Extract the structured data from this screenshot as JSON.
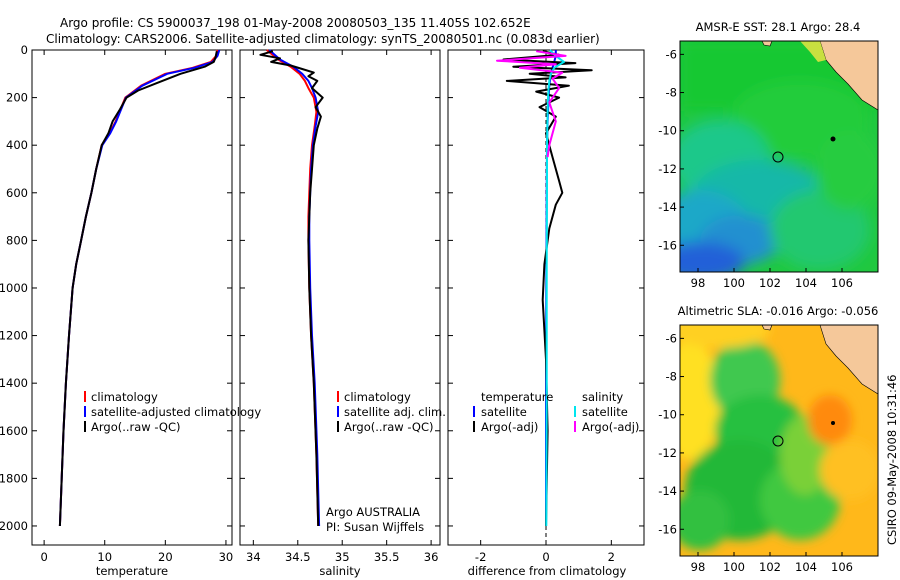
{
  "title": {
    "line1": "Argo profile: CS 5900037_198 01-May-2008 20080503_135 11.405S 102.652E",
    "line2": "Climatology: CARS2006. Satellite-adjusted climatology: synTS_20080501.nc (0.083d earlier)"
  },
  "credit": "CSIRO 09-May-2008 10:31:46",
  "colors": {
    "climatology": "#ff0000",
    "satellite": "#0000ff",
    "argo": "#000000",
    "sat_salinity": "#00e5ee",
    "argo_salinity": "#ff00ff"
  },
  "chart_data": [
    {
      "type": "line",
      "name": "temperature-profile",
      "xlabel": "temperature",
      "ylabel": "",
      "xlim": [
        -2,
        31
      ],
      "ylim": [
        2080,
        0
      ],
      "xticks": [
        0,
        10,
        20,
        30
      ],
      "yticks": [
        0,
        200,
        400,
        600,
        800,
        1000,
        1200,
        1400,
        1600,
        1800,
        2000
      ],
      "legend": [
        "climatology",
        "satellite-adjusted climatology",
        "Argo(..raw -QC)"
      ],
      "series": [
        {
          "name": "climatology",
          "color": "#ff0000",
          "x": [
            28.6,
            28.4,
            27.5,
            24.5,
            20,
            16,
            13.4,
            11.8,
            10.8,
            9.5,
            8.6,
            7.8,
            6.9,
            6.1,
            5.3,
            4.7,
            4.1,
            3.6,
            3.2,
            2.9,
            2.6
          ],
          "y": [
            0,
            25,
            50,
            75,
            100,
            150,
            200,
            300,
            350,
            400,
            500,
            600,
            700,
            800,
            900,
            1000,
            1200,
            1400,
            1600,
            1800,
            2000
          ]
        },
        {
          "name": "satellite-adjusted climatology",
          "color": "#0000ff",
          "x": [
            28.9,
            28.6,
            27.8,
            24.8,
            20.3,
            16.2,
            13.5,
            11.9,
            10.9,
            9.6,
            8.6,
            7.8,
            6.9,
            6.1,
            5.3,
            4.7,
            4.1,
            3.6,
            3.2,
            2.9,
            2.6
          ],
          "y": [
            0,
            25,
            50,
            75,
            100,
            150,
            200,
            300,
            350,
            400,
            500,
            600,
            700,
            800,
            900,
            1000,
            1200,
            1400,
            1600,
            1800,
            2000
          ]
        },
        {
          "name": "Argo(..raw -QC)",
          "color": "#000000",
          "x": [
            28.5,
            28.3,
            28.0,
            26.5,
            22.5,
            18.5,
            15.5,
            13.6,
            12.5,
            11.3,
            10.6,
            9.5,
            8.6,
            7.8,
            6.9,
            6.1,
            5.3,
            4.7,
            4.1,
            3.6,
            3.2,
            2.9,
            2.6
          ],
          "y": [
            5,
            30,
            50,
            70,
            100,
            140,
            170,
            200,
            250,
            300,
            350,
            400,
            500,
            600,
            700,
            800,
            900,
            1000,
            1200,
            1400,
            1600,
            1800,
            2000
          ]
        }
      ]
    },
    {
      "type": "line",
      "name": "salinity-profile",
      "xlabel": "salinity",
      "ylabel": "",
      "xlim": [
        33.85,
        36.1
      ],
      "ylim": [
        2080,
        0
      ],
      "xticks": [
        34,
        34.5,
        35,
        35.5,
        36
      ],
      "yticks": [
        0,
        200,
        400,
        600,
        800,
        1000,
        1200,
        1400,
        1600,
        1800,
        2000
      ],
      "legend": [
        "climatology",
        "satellite adj. clim.",
        "Argo(..raw -QC)"
      ],
      "annotation": [
        "Argo AUSTRALIA",
        "PI: Susan Wijffels"
      ],
      "series": [
        {
          "name": "climatology",
          "color": "#ff0000",
          "x": [
            34.15,
            34.28,
            34.42,
            34.52,
            34.58,
            34.62,
            34.68,
            34.71,
            34.69,
            34.66,
            34.64,
            34.63,
            34.62,
            34.62,
            34.63,
            34.65,
            34.68,
            34.71,
            34.73
          ],
          "y": [
            0,
            40,
            70,
            100,
            130,
            160,
            200,
            260,
            320,
            400,
            500,
            600,
            700,
            800,
            1000,
            1200,
            1400,
            1700,
            2000
          ]
        },
        {
          "name": "satellite adj. clim.",
          "color": "#0000ff",
          "x": [
            34.18,
            34.3,
            34.45,
            34.55,
            34.62,
            34.66,
            34.7,
            34.73,
            34.7,
            34.67,
            34.65,
            34.64,
            34.63,
            34.63,
            34.64,
            34.66,
            34.69,
            34.72,
            34.74
          ],
          "y": [
            0,
            40,
            70,
            100,
            130,
            160,
            200,
            260,
            320,
            400,
            500,
            600,
            700,
            800,
            1000,
            1200,
            1400,
            1700,
            2000
          ]
        },
        {
          "name": "Argo(..raw -QC)",
          "color": "#000000",
          "x": [
            34.22,
            34.08,
            34.3,
            34.2,
            34.42,
            34.55,
            34.68,
            34.62,
            34.72,
            34.66,
            34.78,
            34.7,
            34.76,
            34.72,
            34.68,
            34.66,
            34.64,
            34.62,
            34.63,
            34.65,
            34.68,
            34.71,
            34.73
          ],
          "y": [
            5,
            20,
            35,
            50,
            65,
            80,
            95,
            110,
            130,
            160,
            200,
            240,
            280,
            330,
            400,
            500,
            600,
            800,
            1000,
            1200,
            1400,
            1700,
            2000
          ]
        }
      ]
    },
    {
      "type": "line",
      "name": "difference-profile",
      "xlabel": "difference from climatology",
      "ylabel": "",
      "xlim": [
        -3,
        3
      ],
      "ylim": [
        2080,
        0
      ],
      "xticks": [
        -2,
        0,
        2
      ],
      "yticks": [
        0,
        200,
        400,
        600,
        800,
        1000,
        1200,
        1400,
        1600,
        1800,
        2000
      ],
      "legend_temperature": {
        "title": "temperature",
        "items": [
          "satellite",
          "Argo(-adj)"
        ]
      },
      "legend_salinity": {
        "title": "salinity",
        "items": [
          "satellite",
          "Argo(-adj)"
        ]
      },
      "series": [
        {
          "name": "temperature satellite",
          "color": "#0000ff",
          "x": [
            0.3,
            0.3,
            0.25,
            0.2,
            0.15,
            0.1,
            0.08,
            0.05,
            0.03,
            0.02,
            0.01,
            0.0,
            0.0
          ],
          "y": [
            0,
            25,
            50,
            75,
            100,
            150,
            200,
            300,
            400,
            600,
            1000,
            1500,
            2000
          ]
        },
        {
          "name": "temperature Argo(-adj)",
          "color": "#000000",
          "x": [
            -0.1,
            0.4,
            -1.3,
            0.9,
            -1.0,
            1.4,
            -0.5,
            0.6,
            -1.2,
            0.7,
            -0.3,
            0.4,
            -0.2,
            0.3,
            0.0,
            0.2,
            0.4,
            0.5,
            0.3,
            0.1,
            -0.05,
            -0.1,
            0.0,
            0.05,
            0.0
          ],
          "y": [
            5,
            20,
            40,
            55,
            70,
            85,
            100,
            115,
            130,
            150,
            175,
            200,
            240,
            280,
            350,
            450,
            550,
            600,
            650,
            750,
            900,
            1050,
            1300,
            1600,
            2000
          ]
        },
        {
          "name": "salinity satellite",
          "color": "#00e5ee",
          "x": [
            0.12,
            0.3,
            0.55,
            0.25,
            0.15,
            0.1,
            0.08,
            0.06,
            0.05,
            0.04,
            0.03,
            0.03,
            0.02,
            0.02,
            0.01
          ],
          "y": [
            0,
            25,
            50,
            75,
            100,
            130,
            160,
            200,
            260,
            320,
            400,
            600,
            900,
            1400,
            2000
          ]
        },
        {
          "name": "salinity Argo(-adj)",
          "color": "#ff00ff",
          "x": [
            -0.3,
            0.6,
            -1.5,
            0.3,
            -0.8,
            0.5,
            0.2,
            0.4,
            0.1,
            0.3,
            0.1,
            0.05
          ],
          "y": [
            5,
            25,
            45,
            60,
            75,
            95,
            120,
            160,
            220,
            300,
            400,
            450
          ]
        }
      ]
    },
    {
      "type": "heatmap",
      "name": "sst-map",
      "title": "AMSR-E SST: 28.1 Argo: 28.4",
      "xlim": [
        97,
        108
      ],
      "ylim": [
        -17.4,
        -5.3
      ],
      "xticks": [
        98,
        100,
        102,
        104,
        106
      ],
      "yticks": [
        -6,
        -8,
        -10,
        -12,
        -14,
        -16
      ],
      "profile_location": [
        102.652,
        -11.405
      ]
    },
    {
      "type": "heatmap",
      "name": "sla-map",
      "title": "Altimetric SLA: -0.016 Argo: -0.056",
      "xlim": [
        97,
        108
      ],
      "ylim": [
        -17.4,
        -5.3
      ],
      "xticks": [
        98,
        100,
        102,
        104,
        106
      ],
      "yticks": [
        -6,
        -8,
        -10,
        -12,
        -14,
        -16
      ],
      "profile_location": [
        102.652,
        -11.405
      ]
    }
  ]
}
